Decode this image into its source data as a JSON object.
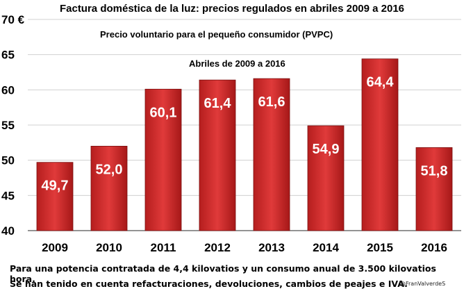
{
  "chart_data": {
    "type": "bar",
    "title": "Factura doméstica de la luz: precios regulados en abriles 2009 a 2016",
    "subtitle": "Precio voluntario para el pequeño consumidor (PVPC)",
    "annotation": "Abriles de 2009 a 2016",
    "categories": [
      "2009",
      "2010",
      "2011",
      "2012",
      "2013",
      "2014",
      "2015",
      "2016"
    ],
    "values": [
      49.7,
      52.0,
      60.1,
      61.4,
      61.6,
      54.9,
      64.4,
      51.8
    ],
    "data_labels": [
      "49,7",
      "52,0",
      "60,1",
      "61,4",
      "61,6",
      "54,9",
      "64,4",
      "51,8"
    ],
    "ylim": [
      40,
      70
    ],
    "yticks": [
      "40",
      "45",
      "50",
      "55",
      "60",
      "65",
      "70 €"
    ],
    "ytick_values": [
      40,
      45,
      50,
      55,
      60,
      65,
      70
    ],
    "grid": true,
    "bar_color": "#d32c2c",
    "label_color": "#ffffff"
  },
  "footnote": {
    "line1": "Para una potencia contratada de 4,4 kilovatios y un consumo anual de 3.500 kilovatios hora.",
    "line2": "Se han tenido en cuenta refacturaciones, devoluciones, cambios de peajes e IVA.",
    "credit": "@FranValverdeS"
  }
}
